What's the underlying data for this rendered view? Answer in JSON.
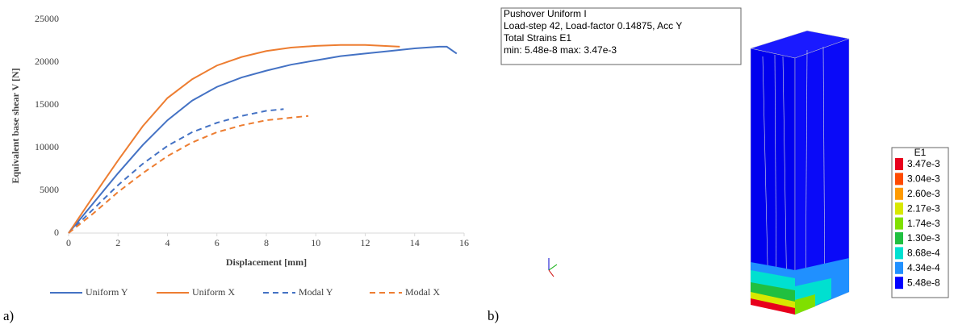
{
  "chart_data": {
    "type": "line",
    "x_label": "Displacement [mm]",
    "y_label": "Equivalent base shear V [N]",
    "xlim": [
      0,
      16
    ],
    "xticks": [
      0,
      2,
      4,
      6,
      8,
      10,
      12,
      14,
      16
    ],
    "ylim": [
      0,
      25000
    ],
    "yticks": [
      0,
      5000,
      10000,
      15000,
      20000,
      25000
    ],
    "grid": false,
    "legend": "bottom",
    "series": [
      {
        "name": "Uniform Y",
        "color": "#4472c4",
        "dash": false,
        "x": [
          0,
          1,
          2,
          3,
          4,
          5,
          6,
          7,
          8,
          9,
          10,
          11,
          12,
          13,
          14,
          15,
          15.3,
          15.7
        ],
        "values": [
          0,
          3500,
          7000,
          10300,
          13200,
          15500,
          17100,
          18200,
          19000,
          19700,
          20200,
          20700,
          21000,
          21300,
          21600,
          21800,
          21800,
          21000
        ]
      },
      {
        "name": "Uniform X",
        "color": "#ed7d31",
        "dash": false,
        "x": [
          0,
          1,
          2,
          3,
          4,
          5,
          6,
          7,
          8,
          9,
          10,
          11,
          12,
          13.4
        ],
        "values": [
          0,
          4300,
          8500,
          12500,
          15800,
          18000,
          19600,
          20600,
          21300,
          21700,
          21900,
          22000,
          22000,
          21800
        ]
      },
      {
        "name": "Modal Y",
        "color": "#4472c4",
        "dash": true,
        "x": [
          0,
          1,
          2,
          3,
          4,
          5,
          6,
          7,
          8,
          8.7
        ],
        "values": [
          0,
          2800,
          5600,
          8100,
          10200,
          11800,
          12900,
          13700,
          14300,
          14500
        ]
      },
      {
        "name": "Modal X",
        "color": "#ed7d31",
        "dash": true,
        "x": [
          0,
          1,
          2,
          3,
          4,
          5,
          6,
          7,
          8,
          9,
          9.7
        ],
        "values": [
          0,
          2300,
          4800,
          7000,
          9000,
          10600,
          11800,
          12600,
          13200,
          13500,
          13700
        ]
      }
    ]
  },
  "panels": [
    "a)",
    "b)"
  ],
  "contour": {
    "info": [
      "Pushover Uniform I",
      "Load-step 42, Load-factor 0.14875, Acc Y",
      "Total Strains E1",
      "min:  5.48e-8 max:  3.47e-3"
    ],
    "legend_title": "E1",
    "legend": [
      {
        "label": "3.47e-3",
        "color": "#e8001c"
      },
      {
        "label": "3.04e-3",
        "color": "#ff4a00"
      },
      {
        "label": "2.60e-3",
        "color": "#ff9a00"
      },
      {
        "label": "2.17e-3",
        "color": "#d8e800"
      },
      {
        "label": "1.74e-3",
        "color": "#80e000"
      },
      {
        "label": "1.30e-3",
        "color": "#20c040"
      },
      {
        "label": "8.68e-4",
        "color": "#00e0d0"
      },
      {
        "label": "4.34e-4",
        "color": "#2090ff"
      },
      {
        "label": "5.48e-8",
        "color": "#0000ff"
      }
    ]
  }
}
